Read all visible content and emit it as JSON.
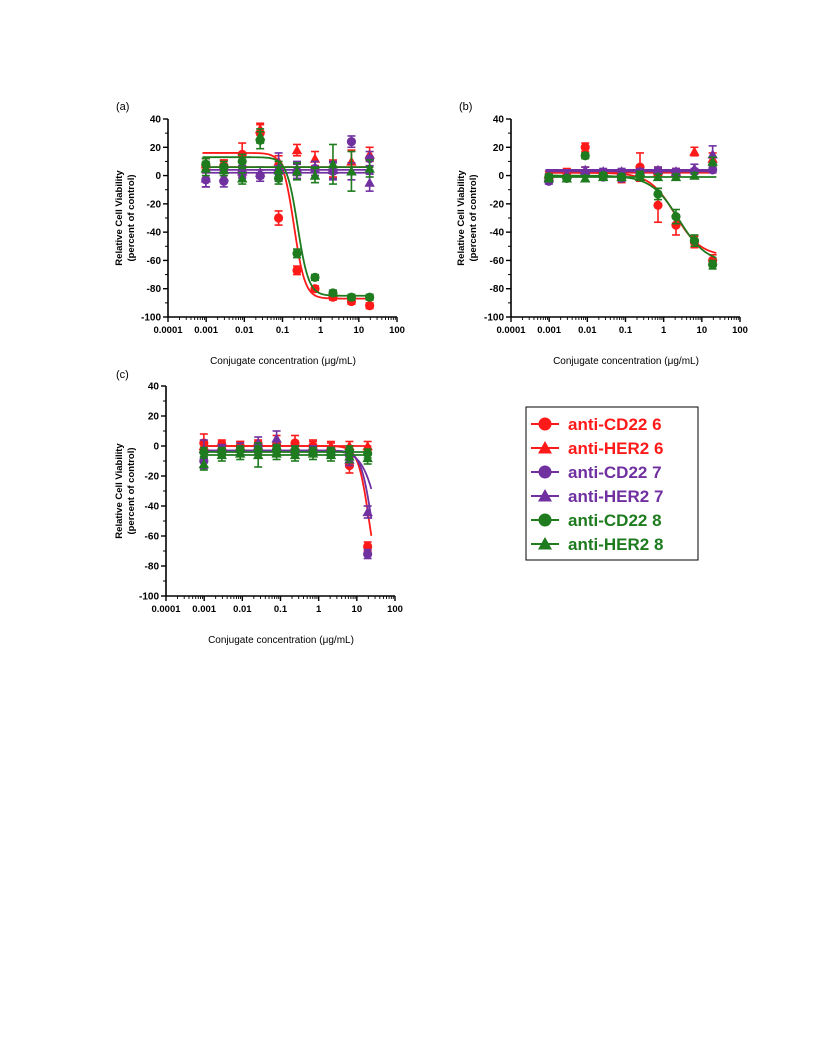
{
  "figure": {
    "legend": [
      {
        "label": "anti-CD22 6",
        "color": "#ff1a1a",
        "marker": "circle"
      },
      {
        "label": "anti-HER2 6",
        "color": "#ff1a1a",
        "marker": "triangle"
      },
      {
        "label": "anti-CD22 7",
        "color": "#7030a0",
        "marker": "circle"
      },
      {
        "label": "anti-HER2 7",
        "color": "#7030a0",
        "marker": "triangle"
      },
      {
        "label": "anti-CD22 8",
        "color": "#1e7b1e",
        "marker": "circle"
      },
      {
        "label": "anti-HER2 8",
        "color": "#1e7b1e",
        "marker": "triangle"
      }
    ]
  },
  "chart_data": [
    {
      "type": "scatter",
      "panel_label": "(a)",
      "ylabel_line1": "Relative Cell Viability",
      "ylabel_line2": "(percent of control)",
      "xlabel": "Conjugate concentration (μg/mL)",
      "x_scale": "log",
      "xlim": [
        0.0001,
        100
      ],
      "ylim": [
        -100,
        40
      ],
      "x_ticks": [
        "0.0001",
        "0.001",
        "0.01",
        "0.1",
        "1",
        "10",
        "100"
      ],
      "y_ticks": [
        "40",
        "20",
        "0",
        "-20",
        "-40",
        "-60",
        "-80",
        "-100"
      ],
      "x": [
        0.00098,
        0.0029,
        0.0088,
        0.026,
        0.079,
        0.24,
        0.71,
        2.1,
        6.4,
        19.2
      ],
      "series": [
        {
          "name": "anti-CD22 6",
          "color": "#ff1a1a",
          "marker": "circle",
          "values": [
            7,
            7,
            15,
            30,
            -30,
            -67,
            -80,
            -86,
            -89,
            -92
          ],
          "errors": [
            5,
            4,
            8,
            6,
            5,
            3,
            2,
            2,
            2,
            2
          ],
          "fit": {
            "top": 16,
            "bottom": -87,
            "ec50": 0.2,
            "hill": 3
          }
        },
        {
          "name": "anti-HER2 6",
          "color": "#ff1a1a",
          "marker": "triangle",
          "values": [
            8,
            7,
            5,
            33,
            10,
            18,
            12,
            5,
            10,
            15
          ],
          "errors": [
            4,
            4,
            5,
            4,
            4,
            4,
            5,
            6,
            8,
            5
          ],
          "fit": {
            "top": 6,
            "bottom": 6,
            "ec50": 1,
            "hill": 1
          }
        },
        {
          "name": "anti-CD22 7",
          "color": "#7030a0",
          "marker": "circle",
          "values": [
            -3,
            -4,
            2,
            0,
            2,
            3,
            5,
            3,
            24,
            12
          ],
          "errors": [
            5,
            4,
            4,
            4,
            5,
            5,
            5,
            6,
            4,
            5
          ],
          "fit": {
            "top": 2,
            "bottom": 2,
            "ec50": 1,
            "hill": 1
          }
        },
        {
          "name": "anti-HER2 7",
          "color": "#7030a0",
          "marker": "triangle",
          "values": [
            -2,
            -1,
            3,
            2,
            6,
            5,
            5,
            4,
            3,
            -5
          ],
          "errors": [
            6,
            4,
            4,
            4,
            10,
            5,
            5,
            6,
            6,
            6
          ],
          "fit": {
            "top": 4,
            "bottom": 4,
            "ec50": 1,
            "hill": 1
          }
        },
        {
          "name": "anti-CD22 8",
          "color": "#1e7b1e",
          "marker": "circle",
          "values": [
            8,
            6,
            10,
            25,
            -2,
            -55,
            -72,
            -83,
            -86,
            -86
          ],
          "errors": [
            4,
            4,
            5,
            6,
            4,
            3,
            2,
            2,
            2,
            2
          ],
          "fit": {
            "top": 13,
            "bottom": -85,
            "ec50": 0.25,
            "hill": 3
          }
        },
        {
          "name": "anti-HER2 8",
          "color": "#1e7b1e",
          "marker": "triangle",
          "values": [
            5,
            4,
            -2,
            28,
            4,
            3,
            0,
            8,
            3,
            5
          ],
          "errors": [
            5,
            4,
            4,
            5,
            6,
            6,
            5,
            14,
            14,
            6
          ],
          "fit": {
            "top": 6,
            "bottom": 6,
            "ec50": 1,
            "hill": 1
          }
        }
      ]
    },
    {
      "type": "scatter",
      "panel_label": "(b)",
      "ylabel_line1": "Relative Cell Viability",
      "ylabel_line2": "(percent of control)",
      "xlabel": "Conjugate concentration (μg/mL)",
      "x_scale": "log",
      "xlim": [
        0.0001,
        100
      ],
      "ylim": [
        -100,
        40
      ],
      "x_ticks": [
        "0.0001",
        "0.001",
        "0.01",
        "0.1",
        "1",
        "10",
        "100"
      ],
      "y_ticks": [
        "40",
        "20",
        "0",
        "-20",
        "-40",
        "-60",
        "-80",
        "-100"
      ],
      "x": [
        0.00098,
        0.0029,
        0.0088,
        0.026,
        0.079,
        0.24,
        0.71,
        2.1,
        6.4,
        19.2
      ],
      "series": [
        {
          "name": "anti-CD22 6",
          "color": "#ff1a1a",
          "marker": "circle",
          "values": [
            -2,
            2,
            20,
            1,
            -2,
            6,
            -21,
            -35,
            -47,
            -60
          ],
          "errors": [
            3,
            3,
            3,
            3,
            3,
            10,
            12,
            7,
            4,
            4
          ],
          "fit": {
            "top": 2,
            "bottom": -57,
            "ec50": 2,
            "hill": 1.3
          }
        },
        {
          "name": "anti-HER2 6",
          "color": "#ff1a1a",
          "marker": "triangle",
          "values": [
            1,
            1,
            3,
            2,
            2,
            2,
            3,
            2,
            17,
            12
          ],
          "errors": [
            2,
            2,
            3,
            2,
            2,
            2,
            3,
            3,
            3,
            4
          ],
          "fit": {
            "top": 2,
            "bottom": 2,
            "ec50": 1,
            "hill": 1
          }
        },
        {
          "name": "anti-CD22 7",
          "color": "#7030a0",
          "marker": "circle",
          "values": [
            -4,
            -2,
            1,
            -1,
            -2,
            2,
            3,
            2,
            3,
            4
          ],
          "errors": [
            2,
            2,
            2,
            2,
            2,
            2,
            2,
            2,
            2,
            2
          ],
          "fit": {
            "top": 3,
            "bottom": 3,
            "ec50": 1,
            "hill": 1
          }
        },
        {
          "name": "anti-HER2 7",
          "color": "#7030a0",
          "marker": "triangle",
          "values": [
            -1,
            1,
            4,
            3,
            3,
            3,
            4,
            3,
            5,
            15
          ],
          "errors": [
            2,
            2,
            2,
            2,
            2,
            2,
            2,
            2,
            3,
            6
          ],
          "fit": {
            "top": 4,
            "bottom": 4,
            "ec50": 1,
            "hill": 1
          }
        },
        {
          "name": "anti-CD22 8",
          "color": "#1e7b1e",
          "marker": "circle",
          "values": [
            -1,
            -2,
            14,
            0,
            -1,
            0,
            -13,
            -29,
            -46,
            -63
          ],
          "errors": [
            2,
            2,
            2,
            2,
            2,
            3,
            4,
            5,
            4,
            3
          ],
          "fit": {
            "top": 0,
            "bottom": -62,
            "ec50": 2.5,
            "hill": 1.2
          }
        },
        {
          "name": "anti-HER2 8",
          "color": "#1e7b1e",
          "marker": "triangle",
          "values": [
            -2,
            -2,
            -2,
            -1,
            -1,
            -1,
            -1,
            -1,
            0,
            10
          ],
          "errors": [
            2,
            2,
            2,
            2,
            2,
            2,
            2,
            2,
            2,
            3
          ],
          "fit": {
            "top": -1,
            "bottom": -1,
            "ec50": 1,
            "hill": 1
          }
        }
      ]
    },
    {
      "type": "scatter",
      "panel_label": "(c)",
      "ylabel_line1": "Relative Cell Viability",
      "ylabel_line2": "(percent of control)",
      "xlabel": "Conjugate concentration (μg/mL)",
      "x_scale": "log",
      "xlim": [
        0.0001,
        100
      ],
      "ylim": [
        -100,
        40
      ],
      "x_ticks": [
        "0.0001",
        "0.001",
        "0.01",
        "0.1",
        "1",
        "10",
        "100"
      ],
      "y_ticks": [
        "40",
        "20",
        "0",
        "-20",
        "-40",
        "-60",
        "-80",
        "-100"
      ],
      "x": [
        0.00098,
        0.0029,
        0.0088,
        0.026,
        0.079,
        0.24,
        0.71,
        2.1,
        6.4,
        19.2
      ],
      "series": [
        {
          "name": "anti-CD22 6",
          "color": "#ff1a1a",
          "marker": "circle",
          "values": [
            2,
            1,
            0,
            1,
            1,
            2,
            0,
            -2,
            -13,
            -67
          ],
          "errors": [
            6,
            3,
            3,
            3,
            6,
            5,
            4,
            4,
            5,
            3
          ],
          "fit": {
            "top": 0,
            "bottom": -100,
            "ec50": 21,
            "hill": 3
          }
        },
        {
          "name": "anti-HER2 6",
          "color": "#ff1a1a",
          "marker": "triangle",
          "values": [
            0,
            0,
            0,
            0,
            0,
            0,
            0,
            0,
            0,
            0
          ],
          "errors": [
            3,
            3,
            3,
            3,
            3,
            3,
            3,
            3,
            3,
            3
          ],
          "fit": {
            "top": 0,
            "bottom": 0,
            "ec50": 1,
            "hill": 1
          }
        },
        {
          "name": "anti-CD22 7",
          "color": "#7030a0",
          "marker": "circle",
          "values": [
            -10,
            -3,
            -3,
            -2,
            -3,
            -3,
            -3,
            -4,
            -6,
            -72
          ],
          "errors": [
            5,
            3,
            3,
            3,
            3,
            3,
            3,
            3,
            3,
            3
          ],
          "fit": {
            "top": -3,
            "bottom": -100,
            "ec50": 25,
            "hill": 3
          }
        },
        {
          "name": "anti-HER2 7",
          "color": "#7030a0",
          "marker": "triangle",
          "values": [
            -2,
            -2,
            -2,
            2,
            5,
            -3,
            -3,
            -4,
            -9,
            -44
          ],
          "errors": [
            6,
            3,
            4,
            4,
            5,
            3,
            3,
            3,
            4,
            4
          ],
          "fit": {
            "top": -3,
            "bottom": -100,
            "ec50": 40,
            "hill": 2
          }
        },
        {
          "name": "anti-CD22 8",
          "color": "#1e7b1e",
          "marker": "circle",
          "values": [
            -4,
            -4,
            -3,
            -3,
            -2,
            -3,
            -4,
            -4,
            -3,
            -5
          ],
          "errors": [
            3,
            3,
            3,
            3,
            3,
            3,
            3,
            3,
            3,
            3
          ],
          "fit": {
            "top": -4,
            "bottom": -4,
            "ec50": 1,
            "hill": 1
          }
        },
        {
          "name": "anti-HER2 8",
          "color": "#1e7b1e",
          "marker": "triangle",
          "values": [
            -12,
            -6,
            -5,
            -6,
            -5,
            -6,
            -5,
            -6,
            -7,
            -8
          ],
          "errors": [
            4,
            4,
            4,
            8,
            4,
            4,
            4,
            4,
            4,
            4
          ],
          "fit": {
            "top": -6,
            "bottom": -6,
            "ec50": 1,
            "hill": 1
          }
        }
      ]
    }
  ]
}
